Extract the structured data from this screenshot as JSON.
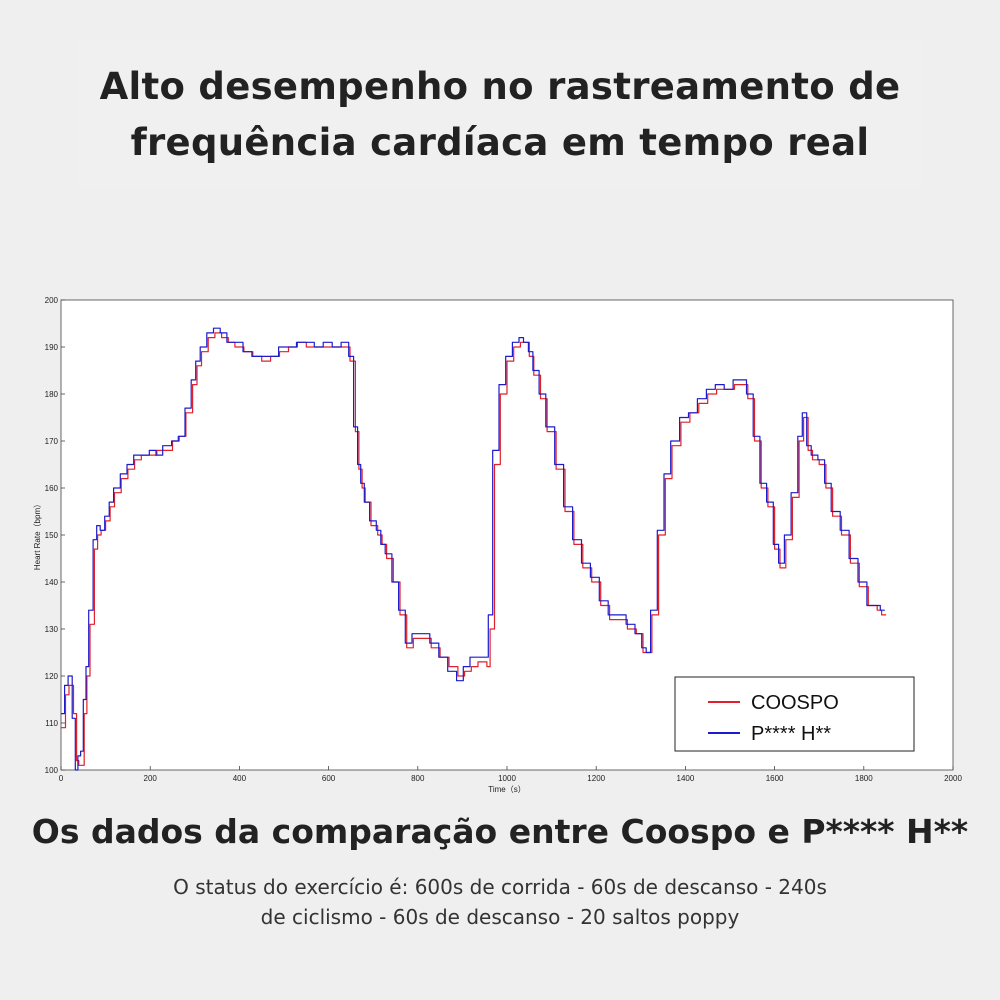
{
  "headline": {
    "line1": "Alto desempenho no rastreamento de",
    "line2": "frequência cardíaca em tempo real"
  },
  "subtitle": "Os dados da comparação entre Coospo e P**** H**",
  "caption": {
    "line1": "O status do exercício é: 600s de corrida - 60s de descanso - 240s",
    "line2": "de ciclismo - 60s de descanso - 20 saltos poppy"
  },
  "chart_data": {
    "type": "line",
    "xlabel": "Time（s）",
    "ylabel": "Heart Rate（bpm）",
    "xlim": [
      0,
      2000
    ],
    "ylim": [
      100,
      200
    ],
    "xticks": [
      0,
      200,
      400,
      600,
      800,
      1000,
      1200,
      1400,
      1600,
      1800,
      2000
    ],
    "yticks": [
      100,
      110,
      120,
      130,
      140,
      150,
      160,
      170,
      180,
      190,
      200
    ],
    "grid": false,
    "legend_position": "bottom-right",
    "series": [
      {
        "name": "COOSPO",
        "color": "#e0202a",
        "x": [
          0,
          10,
          18,
          28,
          35,
          40,
          45,
          52,
          58,
          65,
          75,
          82,
          90,
          100,
          110,
          120,
          135,
          150,
          165,
          180,
          200,
          215,
          230,
          250,
          265,
          280,
          295,
          305,
          315,
          330,
          345,
          360,
          375,
          390,
          410,
          430,
          450,
          470,
          490,
          510,
          530,
          550,
          570,
          590,
          610,
          630,
          648,
          660,
          668,
          675,
          682,
          695,
          710,
          720,
          730,
          745,
          760,
          775,
          790,
          810,
          830,
          850,
          870,
          890,
          905,
          920,
          935,
          955,
          962,
          972,
          985,
          1000,
          1015,
          1030,
          1040,
          1050,
          1060,
          1075,
          1090,
          1110,
          1130,
          1150,
          1170,
          1190,
          1210,
          1230,
          1250,
          1270,
          1290,
          1305,
          1315,
          1325,
          1340,
          1355,
          1370,
          1390,
          1410,
          1430,
          1450,
          1470,
          1490,
          1510,
          1525,
          1540,
          1555,
          1570,
          1585,
          1600,
          1612,
          1625,
          1640,
          1655,
          1665,
          1675,
          1685,
          1700,
          1715,
          1730,
          1750,
          1770,
          1790,
          1810,
          1830,
          1840,
          1850
        ],
        "y": [
          109,
          116,
          118,
          112,
          102,
          101,
          101,
          112,
          120,
          131,
          147,
          150,
          151,
          153,
          156,
          159,
          162,
          164,
          166,
          167,
          167,
          168,
          168,
          170,
          171,
          176,
          182,
          186,
          189,
          192,
          193,
          192,
          191,
          190,
          189,
          188,
          187,
          188,
          189,
          190,
          191,
          190,
          190,
          190,
          190,
          190,
          187,
          172,
          164,
          160,
          157,
          152,
          150,
          148,
          145,
          140,
          133,
          126,
          128,
          128,
          126,
          124,
          122,
          120,
          121,
          122,
          123,
          122,
          130,
          165,
          180,
          187,
          190,
          191,
          191,
          188,
          184,
          179,
          172,
          164,
          155,
          148,
          143,
          140,
          135,
          132,
          132,
          130,
          129,
          125,
          125,
          133,
          150,
          162,
          169,
          174,
          176,
          178,
          180,
          181,
          181,
          182,
          182,
          179,
          170,
          160,
          156,
          147,
          143,
          149,
          158,
          170,
          175,
          168,
          166,
          165,
          160,
          154,
          150,
          144,
          139,
          135,
          134,
          133,
          133
        ]
      },
      {
        "name": "P**** H**",
        "color": "#1c1ccc",
        "x": [
          0,
          8,
          16,
          25,
          32,
          38,
          44,
          50,
          56,
          62,
          72,
          80,
          88,
          98,
          108,
          118,
          133,
          148,
          163,
          178,
          198,
          213,
          228,
          248,
          263,
          278,
          292,
          302,
          312,
          327,
          342,
          357,
          372,
          388,
          408,
          428,
          448,
          468,
          488,
          508,
          528,
          548,
          568,
          588,
          608,
          628,
          645,
          656,
          665,
          672,
          680,
          692,
          707,
          717,
          727,
          742,
          757,
          772,
          787,
          807,
          827,
          847,
          867,
          887,
          902,
          917,
          932,
          952,
          958,
          968,
          982,
          997,
          1012,
          1027,
          1037,
          1048,
          1058,
          1072,
          1087,
          1107,
          1127,
          1147,
          1167,
          1187,
          1207,
          1227,
          1247,
          1267,
          1287,
          1302,
          1312,
          1322,
          1337,
          1352,
          1367,
          1387,
          1407,
          1427,
          1447,
          1467,
          1487,
          1507,
          1522,
          1537,
          1552,
          1567,
          1582,
          1597,
          1609,
          1622,
          1637,
          1652,
          1662,
          1672,
          1682,
          1697,
          1712,
          1727,
          1747,
          1767,
          1787,
          1807,
          1827,
          1837,
          1847
        ],
        "y": [
          112,
          118,
          120,
          111,
          100,
          103,
          104,
          115,
          122,
          134,
          149,
          152,
          151,
          154,
          157,
          160,
          163,
          165,
          167,
          167,
          168,
          167,
          169,
          170,
          171,
          177,
          183,
          187,
          190,
          193,
          194,
          193,
          191,
          191,
          189,
          188,
          188,
          188,
          190,
          190,
          191,
          191,
          190,
          191,
          190,
          191,
          188,
          173,
          165,
          161,
          157,
          153,
          151,
          148,
          146,
          140,
          134,
          127,
          129,
          129,
          127,
          124,
          121,
          119,
          122,
          124,
          124,
          124,
          133,
          168,
          182,
          188,
          191,
          192,
          191,
          189,
          185,
          180,
          173,
          165,
          156,
          149,
          144,
          141,
          136,
          133,
          133,
          131,
          129,
          126,
          125,
          134,
          151,
          163,
          170,
          175,
          176,
          179,
          181,
          182,
          181,
          183,
          183,
          180,
          171,
          161,
          157,
          148,
          144,
          150,
          159,
          171,
          176,
          169,
          167,
          166,
          161,
          155,
          151,
          145,
          140,
          135,
          135,
          134,
          134
        ]
      }
    ]
  }
}
